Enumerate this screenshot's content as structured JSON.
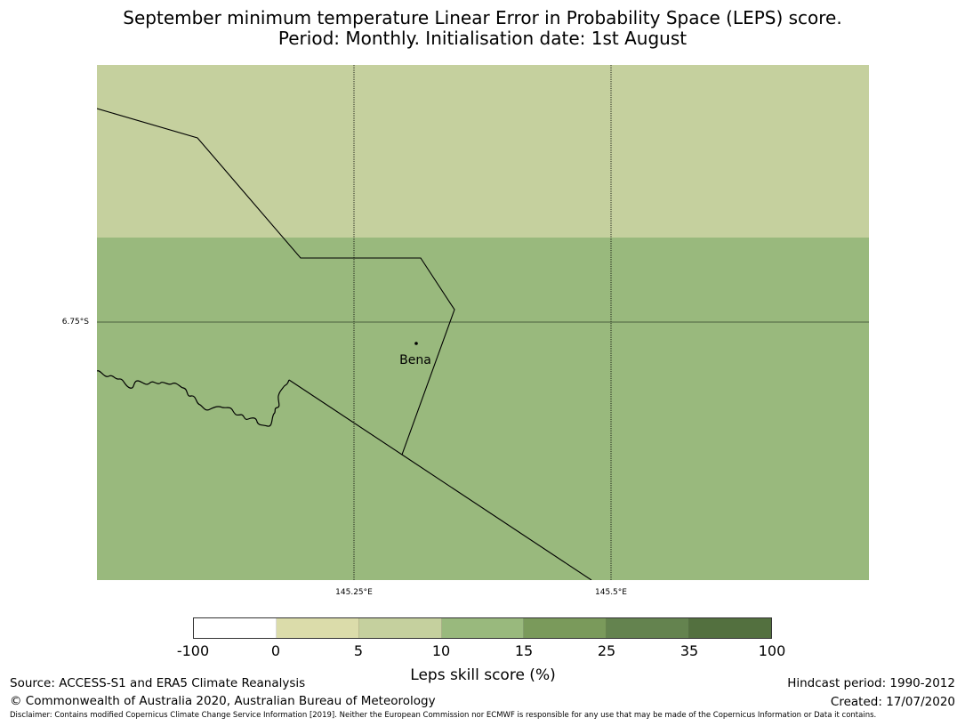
{
  "title": {
    "line1": "September minimum temperature Linear Error in Probability Space (LEPS) score.",
    "line2": "Period: Monthly. Initialisation date: 1st August"
  },
  "map": {
    "lat_tick": "6.75°S",
    "lon_ticks": [
      "145.25°E",
      "145.5°E"
    ],
    "place_label": "Bena",
    "grid_cells": [
      {
        "lepss_band": "5 to 10",
        "color": "#c5d09e"
      },
      {
        "lepss_band": "10 to 15",
        "color": "#99b97d"
      }
    ]
  },
  "colorbar": {
    "title": "Leps skill score (%)",
    "tick_labels": [
      "-100",
      "0",
      "5",
      "10",
      "15",
      "25",
      "35",
      "100"
    ],
    "colors": [
      "#ffffff",
      "#dbdcaa",
      "#c5d09e",
      "#99b97d",
      "#7a9a5b",
      "#64834f",
      "#53703f"
    ]
  },
  "footer": {
    "source": "Source: ACCESS-S1 and ERA5 Climate Reanalysis",
    "copyright": "© Commonwealth of Australia 2020, Australian Bureau of Meteorology",
    "hindcast": "Hindcast period: 1990-2012",
    "created": "Created: 17/07/2020",
    "disclaimer": "Disclaimer: Contains modified Copernicus Climate Change Service Information [2019]. Neither the European Commission nor ECMWF is responsible for any use that may be made of the Copernicus Information or Data it contains."
  }
}
